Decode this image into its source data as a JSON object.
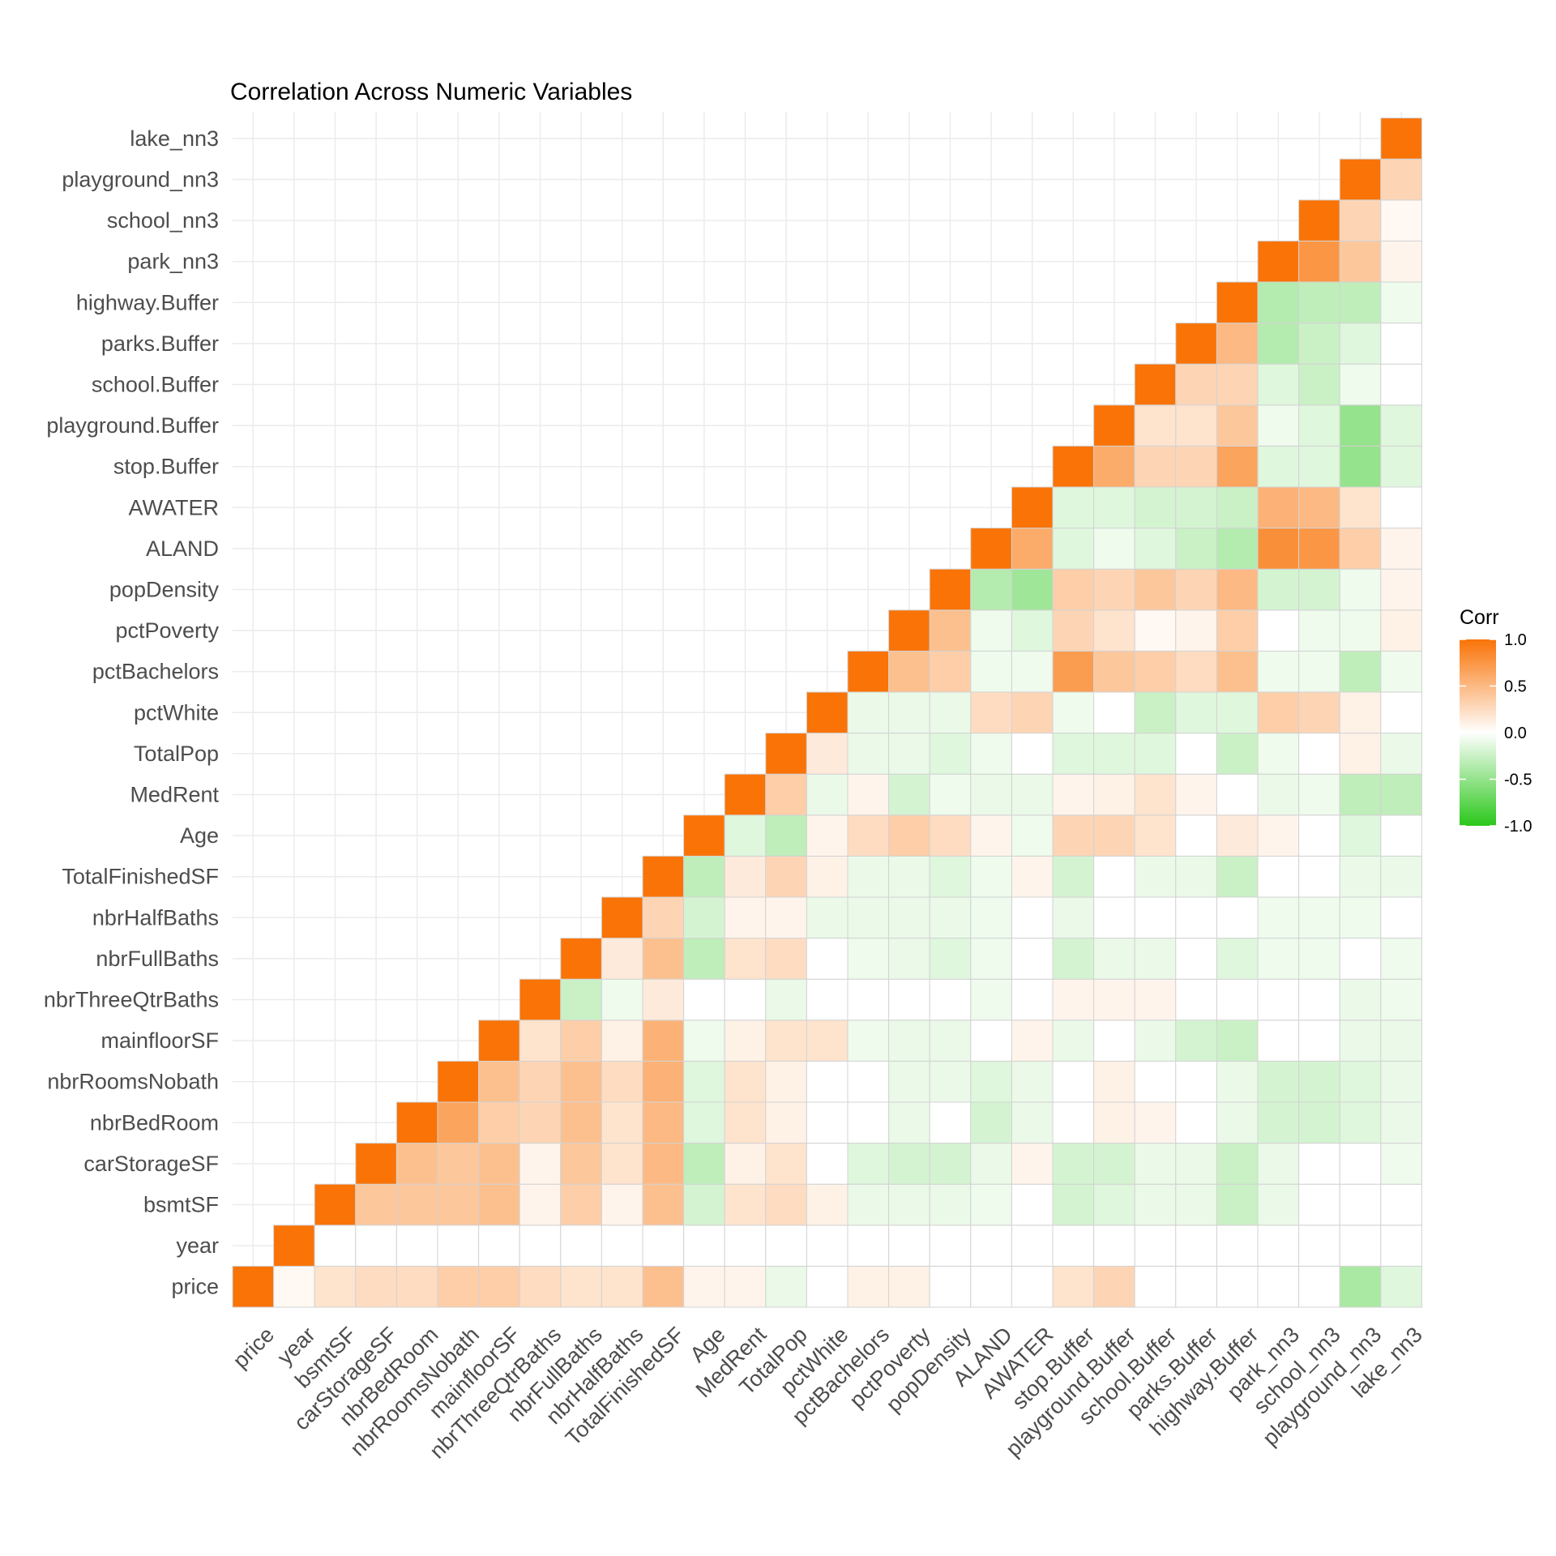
{
  "chart_data": {
    "type": "heatmap",
    "title": "Correlation Across Numeric Variables",
    "xlabel": "",
    "ylabel": "",
    "variables": [
      "price",
      "year",
      "bsmtSF",
      "carStorageSF",
      "nbrBedRoom",
      "nbrRoomsNobath",
      "mainfloorSF",
      "nbrThreeQtrBaths",
      "nbrFullBaths",
      "nbrHalfBaths",
      "TotalFinishedSF",
      "Age",
      "MedRent",
      "TotalPop",
      "pctWhite",
      "pctBachelors",
      "pctPoverty",
      "popDensity",
      "ALAND",
      "AWATER",
      "stop.Buffer",
      "playground.Buffer",
      "school.Buffer",
      "parks.Buffer",
      "highway.Buffer",
      "park_nn3",
      "school_nn3",
      "playground_nn3",
      "lake_nn3"
    ],
    "lower_triangle_values": [
      [
        1.0
      ],
      [
        0.05,
        1.0
      ],
      [
        0.2,
        0.0,
        1.0
      ],
      [
        0.25,
        0.0,
        0.4,
        1.0
      ],
      [
        0.25,
        0.0,
        0.4,
        0.45,
        1.0
      ],
      [
        0.35,
        0.0,
        0.4,
        0.4,
        0.65,
        1.0
      ],
      [
        0.35,
        0.0,
        0.45,
        0.45,
        0.35,
        0.45,
        1.0
      ],
      [
        0.25,
        0.0,
        0.08,
        0.08,
        0.3,
        0.3,
        0.2,
        1.0
      ],
      [
        0.2,
        0.0,
        0.35,
        0.4,
        0.45,
        0.45,
        0.35,
        -0.25,
        1.0
      ],
      [
        0.2,
        0.0,
        0.08,
        0.2,
        0.2,
        0.25,
        0.1,
        -0.08,
        0.15,
        1.0
      ],
      [
        0.45,
        0.0,
        0.45,
        0.5,
        0.5,
        0.55,
        0.55,
        0.15,
        0.45,
        0.3,
        1.0
      ],
      [
        0.08,
        0.0,
        -0.2,
        -0.3,
        -0.15,
        -0.15,
        -0.08,
        0.0,
        -0.3,
        -0.2,
        -0.3,
        1.0
      ],
      [
        0.08,
        0.0,
        0.2,
        0.1,
        0.2,
        0.2,
        0.1,
        0.0,
        0.2,
        0.08,
        0.15,
        -0.15,
        1.0
      ],
      [
        -0.1,
        0.0,
        0.25,
        0.2,
        0.1,
        0.1,
        0.2,
        -0.1,
        0.25,
        0.08,
        0.3,
        -0.3,
        0.35,
        1.0
      ],
      [
        0.0,
        0.0,
        0.1,
        0.0,
        0.0,
        0.0,
        0.2,
        0.0,
        0.0,
        -0.1,
        0.1,
        0.08,
        -0.1,
        0.15,
        1.0
      ],
      [
        0.1,
        0.0,
        -0.1,
        -0.15,
        0.0,
        0.0,
        -0.08,
        0.0,
        -0.08,
        -0.1,
        -0.1,
        0.25,
        0.08,
        -0.1,
        -0.1,
        1.0
      ],
      [
        0.1,
        0.0,
        -0.1,
        -0.2,
        -0.1,
        -0.1,
        -0.1,
        0.0,
        -0.1,
        -0.1,
        -0.1,
        0.35,
        -0.2,
        -0.1,
        -0.1,
        0.45,
        1.0
      ],
      [
        0.0,
        0.0,
        -0.1,
        -0.2,
        0.0,
        -0.1,
        -0.1,
        0.0,
        -0.15,
        -0.1,
        -0.15,
        0.25,
        -0.08,
        -0.15,
        -0.1,
        0.35,
        0.45,
        1.0
      ],
      [
        0.0,
        0.0,
        -0.08,
        -0.1,
        -0.2,
        -0.15,
        0.0,
        -0.08,
        -0.08,
        -0.08,
        -0.08,
        0.08,
        -0.1,
        -0.08,
        0.25,
        -0.08,
        -0.08,
        -0.35,
        1.0
      ],
      [
        0.0,
        0.0,
        0.0,
        0.08,
        -0.1,
        -0.1,
        0.08,
        0.0,
        0.0,
        0.0,
        0.08,
        -0.08,
        -0.1,
        0.0,
        0.3,
        -0.08,
        -0.15,
        -0.45,
        0.6,
        1.0
      ],
      [
        0.2,
        0.0,
        -0.2,
        -0.2,
        0.0,
        0.0,
        -0.1,
        0.08,
        -0.2,
        -0.1,
        -0.2,
        0.3,
        0.08,
        -0.15,
        -0.08,
        0.7,
        0.3,
        0.35,
        -0.15,
        -0.15,
        1.0
      ],
      [
        0.3,
        0.0,
        -0.15,
        -0.2,
        0.1,
        0.1,
        0.0,
        0.08,
        -0.1,
        0.0,
        0.0,
        0.3,
        0.1,
        -0.15,
        0.0,
        0.4,
        0.2,
        0.3,
        -0.08,
        -0.15,
        0.6,
        1.0
      ],
      [
        0.0,
        0.0,
        -0.1,
        -0.1,
        0.08,
        0.0,
        -0.1,
        0.08,
        -0.1,
        0.0,
        -0.1,
        0.2,
        0.2,
        -0.15,
        -0.25,
        0.35,
        0.05,
        0.4,
        -0.15,
        -0.2,
        0.3,
        0.2,
        1.0
      ],
      [
        0.0,
        0.0,
        -0.1,
        -0.1,
        0.0,
        0.0,
        -0.2,
        0.0,
        0.0,
        0.0,
        -0.1,
        0.0,
        0.08,
        0.0,
        -0.15,
        0.25,
        0.08,
        0.3,
        -0.25,
        -0.2,
        0.3,
        0.2,
        0.3,
        1.0
      ],
      [
        0.0,
        0.0,
        -0.25,
        -0.25,
        -0.1,
        -0.1,
        -0.25,
        0.0,
        -0.15,
        0.0,
        -0.25,
        0.15,
        0.0,
        -0.25,
        -0.15,
        0.45,
        0.35,
        0.5,
        -0.35,
        -0.25,
        0.65,
        0.4,
        0.3,
        0.5,
        1.0
      ],
      [
        0.0,
        0.0,
        -0.1,
        -0.1,
        -0.2,
        -0.2,
        0.0,
        0.0,
        -0.08,
        -0.08,
        0.0,
        0.08,
        -0.1,
        -0.08,
        0.35,
        -0.08,
        0.0,
        -0.2,
        0.8,
        0.55,
        -0.15,
        -0.08,
        -0.15,
        -0.35,
        -0.35,
        1.0
      ],
      [
        0.0,
        0.0,
        0.0,
        0.0,
        -0.2,
        -0.2,
        0.0,
        0.0,
        -0.08,
        -0.08,
        0.0,
        0.0,
        -0.08,
        0.0,
        0.3,
        -0.08,
        -0.08,
        -0.2,
        0.75,
        0.5,
        -0.15,
        -0.15,
        -0.25,
        -0.25,
        -0.3,
        0.75,
        1.0
      ],
      [
        -0.4,
        0.0,
        0.0,
        0.0,
        -0.15,
        -0.15,
        -0.1,
        -0.1,
        0.0,
        -0.08,
        -0.1,
        -0.15,
        -0.3,
        0.1,
        0.1,
        -0.3,
        -0.08,
        -0.08,
        0.35,
        0.2,
        -0.5,
        -0.5,
        -0.08,
        -0.15,
        -0.3,
        0.4,
        0.3,
        1.0
      ],
      [
        -0.15,
        0.0,
        0.0,
        -0.08,
        -0.1,
        -0.1,
        -0.1,
        -0.08,
        -0.08,
        0.0,
        -0.1,
        0.0,
        -0.3,
        -0.1,
        0.0,
        -0.08,
        0.1,
        0.08,
        0.08,
        0.0,
        -0.15,
        -0.15,
        0.0,
        0.0,
        -0.08,
        0.08,
        0.05,
        0.3,
        1.0
      ]
    ],
    "legend": {
      "title": "Corr",
      "position": "right",
      "breaks": [
        "1.0",
        "0.5",
        "0.0",
        "-0.5",
        "-1.0"
      ],
      "range": [
        -1.0,
        1.0
      ],
      "colors": {
        "low": "#2ac71a",
        "mid": "#ffffff",
        "high": "#f97307"
      }
    },
    "grid": true
  }
}
